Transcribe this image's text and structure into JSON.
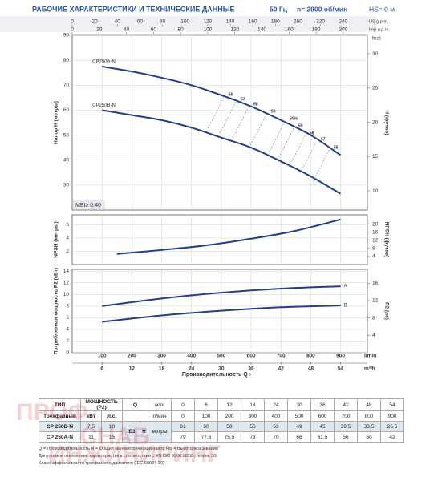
{
  "header": {
    "title": "РАБОЧИЕ ХАРАКТЕРИСТИКИ И ТЕХНИЧЕСКИЕ ДАННЫЕ",
    "frequency": "50 Гц",
    "speed": "n= 2900 об/мин",
    "hs": "HS= 0 м"
  },
  "chart_data": [
    {
      "type": "line",
      "y_label": "Напор H (метры)",
      "y2_label": "H (футов)",
      "y2_unit": "feet",
      "xlim": [
        0,
        990
      ],
      "xticks": [
        100,
        200,
        300,
        400,
        500,
        600,
        700,
        800,
        900
      ],
      "ylim": [
        20,
        90
      ],
      "yticks": [
        30,
        40,
        50,
        60,
        70,
        80,
        90
      ],
      "y2lim": [
        7.2,
        32.7
      ],
      "y2ticks": [
        10,
        15,
        20,
        25,
        30
      ],
      "top_axes": [
        {
          "unit": "US g.p.m.",
          "lim": [
            0,
            261.5
          ],
          "ticks": [
            0,
            20,
            40,
            60,
            80,
            100,
            120,
            140,
            160,
            180,
            200,
            220,
            240
          ]
        },
        {
          "unit": "Imp g.p.m.",
          "lim": [
            0,
            217.8
          ],
          "ticks": [
            0,
            20,
            40,
            60,
            80,
            100,
            120,
            140,
            160,
            180,
            200
          ]
        }
      ],
      "series": [
        {
          "name": "CP250A-N",
          "color": "#1f3f8a",
          "x": [
            100,
            200,
            300,
            400,
            500,
            600,
            700,
            800,
            900
          ],
          "values": [
            77.5,
            75.5,
            73,
            70,
            66,
            61.5,
            56,
            50,
            42
          ]
        },
        {
          "name": "CP250B-N",
          "color": "#1f3f8a",
          "x": [
            100,
            200,
            300,
            400,
            500,
            600,
            700,
            800,
            900
          ],
          "values": [
            60,
            58,
            56,
            53,
            49,
            45,
            39.5,
            33.5,
            26.5
          ]
        }
      ],
      "mei": "MEI≥ 0.40",
      "efficiency_labels": [
        "55",
        "57",
        "58",
        "59",
        "60%",
        "59",
        "58",
        "57",
        "55"
      ]
    },
    {
      "type": "line",
      "y_label": "NPSH (метры)",
      "y2_label": "NPSH (футов)",
      "xlim": [
        0,
        990
      ],
      "xticks": [
        100,
        200,
        300,
        400,
        500,
        600,
        700,
        800,
        900
      ],
      "ylim": [
        0,
        7.5
      ],
      "yticks": [
        2,
        4,
        6
      ],
      "y2lim": [
        0,
        24.6
      ],
      "y2ticks": [
        4,
        8,
        12,
        16,
        20
      ],
      "series": [
        {
          "name": "NPSH",
          "color": "#1f3f8a",
          "x": [
            150,
            300,
            450,
            600,
            750,
            900
          ],
          "values": [
            1.6,
            2.2,
            2.9,
            3.9,
            5.1,
            6.8
          ]
        }
      ]
    },
    {
      "type": "line",
      "y_label": "Потребляемая мощность P2 (кВт)",
      "y2_label": "P2 (лс)",
      "xlim": [
        0,
        990
      ],
      "xticks": [
        100,
        200,
        300,
        400,
        500,
        600,
        700,
        800,
        900
      ],
      "ylim": [
        0,
        14.3
      ],
      "yticks": [
        0,
        2,
        4,
        6,
        8,
        10,
        12,
        14
      ],
      "y2lim": [
        0,
        19.2
      ],
      "y2ticks": [
        4,
        8,
        12,
        16
      ],
      "x_label": "Производительность Q ›",
      "bottom_axes": [
        {
          "unit": "l/min",
          "lim": [
            0,
            990
          ],
          "ticks": [
            100,
            200,
            300,
            400,
            500,
            600,
            700,
            800,
            900
          ]
        },
        {
          "unit": "m³/h",
          "lim": [
            0,
            59.4
          ],
          "ticks": [
            6,
            12,
            18,
            24,
            30,
            36,
            42,
            48,
            54
          ]
        }
      ],
      "series": [
        {
          "name": "A",
          "color": "#1f3f8a",
          "x": [
            100,
            300,
            500,
            700,
            900
          ],
          "values": [
            8.0,
            9.3,
            10.3,
            11.0,
            11.4
          ]
        },
        {
          "name": "B",
          "color": "#1f3f8a",
          "x": [
            100,
            300,
            500,
            700,
            900
          ],
          "values": [
            5.3,
            6.4,
            7.2,
            7.8,
            8.1
          ]
        }
      ]
    }
  ],
  "table": {
    "type": "ТИП",
    "power": "МОЩНОСТЬ (P2)",
    "three_phase": "Трехфазный",
    "kw": "кВт",
    "hp": "л.с.",
    "q": "Q",
    "m3h_unit": "м³/ч",
    "lmin_unit": "л/мин",
    "ie": "IE3",
    "h": "H",
    "h_unit": "метры",
    "m3h": [
      0,
      6,
      12,
      18,
      24,
      30,
      36,
      42,
      48,
      54
    ],
    "lmin": [
      0,
      100,
      200,
      300,
      400,
      500,
      600,
      700,
      800,
      900
    ],
    "rows": [
      {
        "model": "CP 250B-N",
        "kw": "7,5",
        "hp": "10",
        "h": [
          61,
          60,
          58,
          56,
          53,
          49,
          45,
          39.5,
          33.5,
          26.5
        ]
      },
      {
        "model": "CP 250A-N",
        "kw": "11",
        "hp": "15",
        "h": [
          79,
          77.5,
          75.5,
          73,
          70,
          66,
          61.5,
          56,
          50,
          42
        ]
      }
    ]
  },
  "notes": [
    "Q = Производительность   H = Общий манометрический напор   HS = Высота всасывания",
    "Допустимое отклонение характеристик в соответствии с EN ISO 9906:2012 степень 3B",
    "Класс эффективности трехфазного двигателя (IEC 60034-30)"
  ],
  "watermark": [
    "ПРОФ",
    "СНАБ",
    "ИНЖИНИРИНГ"
  ]
}
